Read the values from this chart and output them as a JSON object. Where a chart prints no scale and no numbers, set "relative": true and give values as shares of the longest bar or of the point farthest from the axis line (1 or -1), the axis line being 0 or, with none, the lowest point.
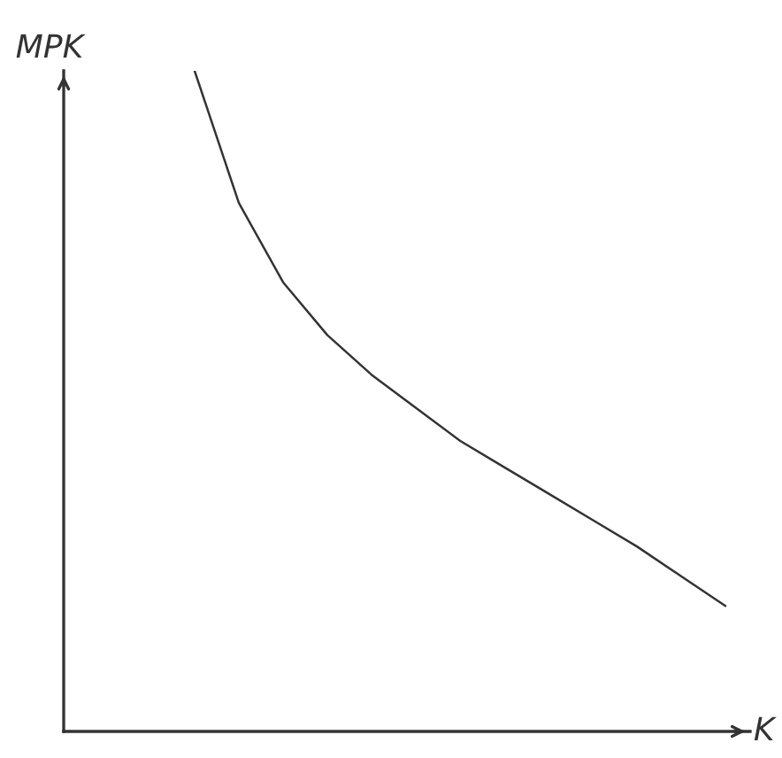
{
  "chart_data": {
    "type": "line",
    "relative": true,
    "xlabel": "K",
    "ylabel": "MPK",
    "categories": [
      null,
      null,
      null,
      null,
      null,
      null,
      null,
      null,
      null,
      null,
      null,
      null,
      null
    ],
    "series": [
      {
        "color": "#333333",
        "values": [
          1,
          0.8,
          0.68,
          0.6,
          0.54,
          0.49,
          0.44,
          0.4,
          0.36,
          0.32,
          0.28,
          0.235,
          0.19
        ]
      }
    ],
    "legend": false
  }
}
